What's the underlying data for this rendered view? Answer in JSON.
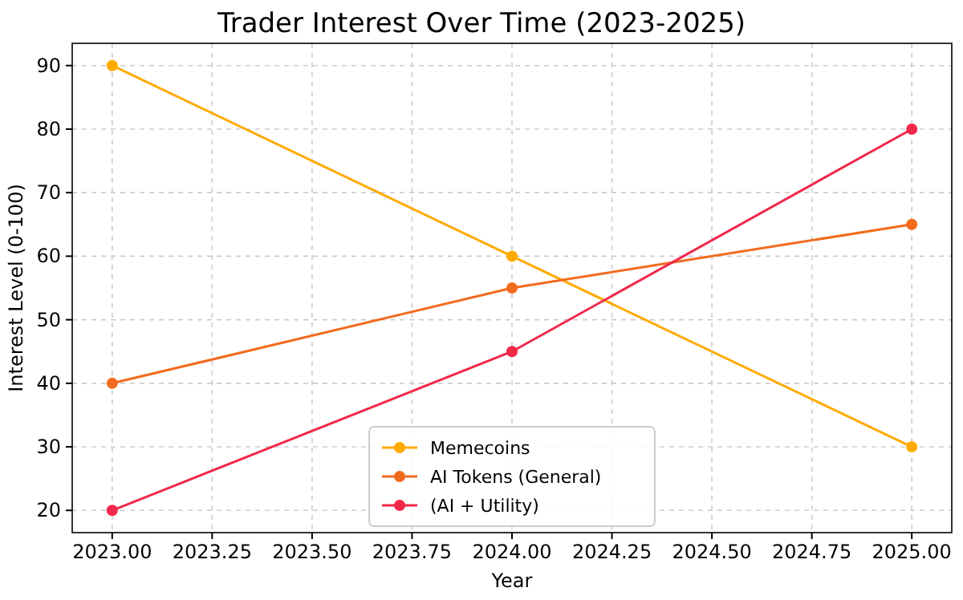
{
  "chart_data": {
    "type": "line",
    "title": "Trader Interest Over Time (2023-2025)",
    "xlabel": "Year",
    "ylabel": "Interest Level (0-100)",
    "x": [
      2023,
      2024,
      2025
    ],
    "series": [
      {
        "name": "Memecoins",
        "color": "#ffaa00",
        "values": [
          90,
          60,
          30
        ]
      },
      {
        "name": "AI Tokens (General)",
        "color": "#f26b1d",
        "values": [
          40,
          55,
          65
        ]
      },
      {
        "name": "(AI + Utility)",
        "color": "#f0284a",
        "values": [
          20,
          45,
          80
        ]
      }
    ],
    "xlim": [
      2022.9,
      2025.1
    ],
    "xticks": [
      {
        "value": 2023,
        "label": "2023.00"
      },
      {
        "value": 2023.25,
        "label": "2023.25"
      },
      {
        "value": 2023.5,
        "label": "2023.50"
      },
      {
        "value": 2023.75,
        "label": "2023.75"
      },
      {
        "value": 2024,
        "label": "2024.00"
      },
      {
        "value": 2024.25,
        "label": "2024.25"
      },
      {
        "value": 2024.5,
        "label": "2024.50"
      },
      {
        "value": 2024.75,
        "label": "2024.75"
      },
      {
        "value": 2025,
        "label": "2025.00"
      }
    ],
    "ylim": [
      16.5,
      93.5
    ],
    "yticks": [
      20,
      30,
      40,
      50,
      60,
      70,
      80,
      90
    ],
    "grid": true,
    "legend": "bottom",
    "marker": "circle",
    "line_style": "solid"
  }
}
